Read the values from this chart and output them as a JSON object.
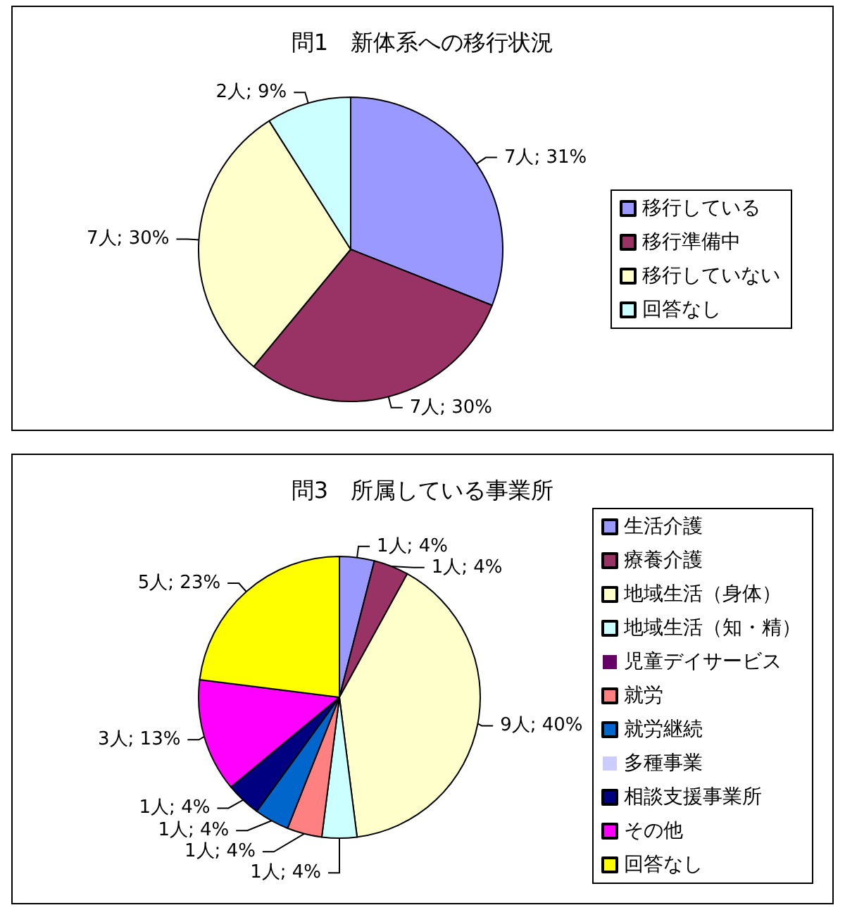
{
  "chart_data": [
    {
      "type": "pie",
      "title": "問1　新体系への移行状況",
      "categories": [
        "移行している",
        "移行準備中",
        "移行していない",
        "回答なし"
      ],
      "values": [
        31,
        30,
        30,
        9
      ],
      "colors": [
        "#9999ff",
        "#993366",
        "#ffffcc",
        "#ccffff"
      ],
      "value_labels": [
        "7人; 31%",
        "7人; 30%",
        "7人; 30%",
        "2人; 9%"
      ],
      "legend": "right"
    },
    {
      "type": "pie",
      "title": "問3　所属している事業所",
      "categories": [
        "生活介護",
        "療養介護",
        "地域生活（身体）",
        "地域生活（知・精）",
        "児童デイサービス",
        "就労",
        "就労継続",
        "多種事業",
        "相談支援事業所",
        "その他",
        "回答なし"
      ],
      "values": [
        4,
        4,
        40,
        4,
        0,
        4,
        4,
        0,
        4,
        13,
        23
      ],
      "colors": [
        "#9999ff",
        "#993366",
        "#ffffcc",
        "#ccffff",
        "#660066",
        "#ff8080",
        "#0066cc",
        "#ccccff",
        "#000080",
        "#ff00ff",
        "#ffff00"
      ],
      "value_labels": [
        "1人; 4%",
        "1人; 4%",
        "9人; 40%",
        "1人; 4%",
        null,
        "1人; 4%",
        "1人; 4%",
        null,
        "1人; 4%",
        "3人; 13%",
        "5人; 23%"
      ],
      "legend": "right"
    }
  ]
}
